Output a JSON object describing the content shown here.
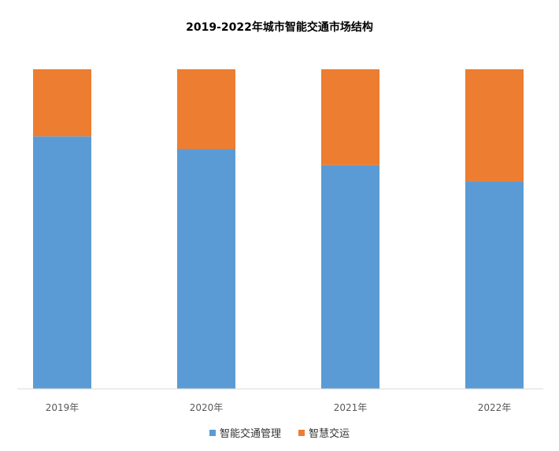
{
  "chart_data": {
    "type": "bar",
    "stacked": true,
    "percent_stacked": true,
    "title": "2019-2022年城市智能交通市场结构",
    "categories": [
      "2019年",
      "2020年",
      "2021年",
      "2022年"
    ],
    "series": [
      {
        "name": "智能交通管理",
        "color": "#5b9bd5",
        "values": [
          79,
          75,
          70,
          65
        ]
      },
      {
        "name": "智慧交运",
        "color": "#ed7d31",
        "values": [
          21,
          25,
          30,
          35
        ]
      }
    ],
    "ylim": [
      0,
      100
    ],
    "grid": false,
    "legend_position": "bottom"
  }
}
